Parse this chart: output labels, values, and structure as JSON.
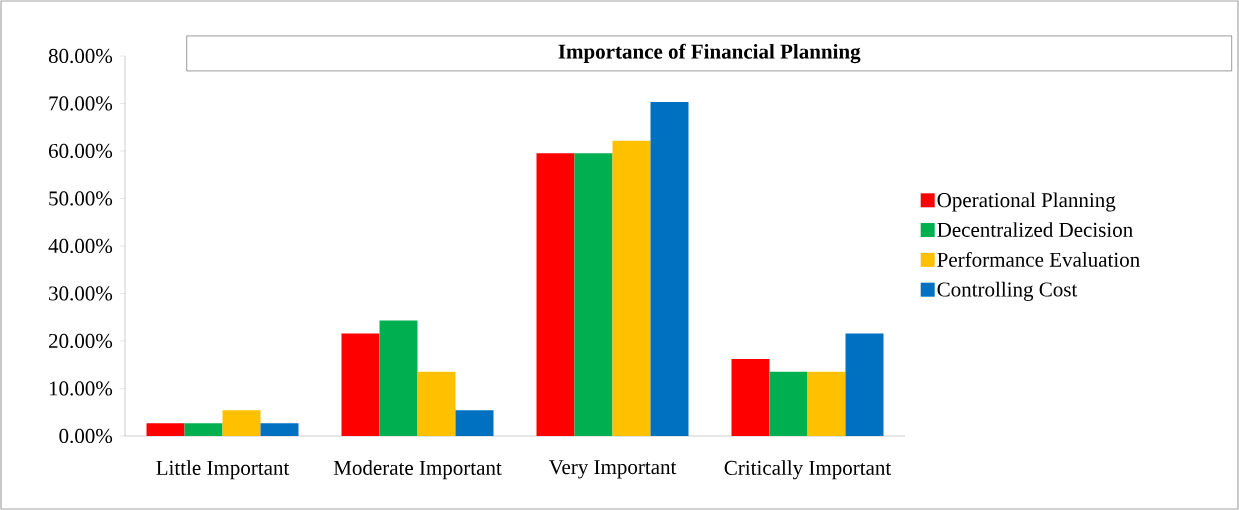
{
  "chart_data": {
    "type": "bar",
    "title": "Importance of Financial Planning",
    "categories": [
      "Little Important",
      "Moderate Important",
      "Very Important",
      "Critically Important"
    ],
    "series": [
      {
        "name": "Operational Planning",
        "color": "#ff0000",
        "values": [
          2.7,
          21.6,
          59.5,
          16.2
        ]
      },
      {
        "name": "Decentralized Decision",
        "color": "#00b050",
        "values": [
          2.7,
          24.3,
          59.5,
          13.5
        ]
      },
      {
        "name": "Performance Evaluation",
        "color": "#ffc000",
        "values": [
          5.4,
          13.5,
          62.2,
          13.5
        ]
      },
      {
        "name": "Controlling Cost",
        "color": "#0070c0",
        "values": [
          2.7,
          5.4,
          70.3,
          21.6
        ]
      }
    ],
    "ylim": [
      0,
      80
    ],
    "yticks": [
      {
        "value": 0,
        "label": "0.00%"
      },
      {
        "value": 10,
        "label": "10.00%"
      },
      {
        "value": 20,
        "label": "20.00%"
      },
      {
        "value": 30,
        "label": "30.00%"
      },
      {
        "value": 40,
        "label": "40.00%"
      },
      {
        "value": 50,
        "label": "50.00%"
      },
      {
        "value": 60,
        "label": "60.00%"
      },
      {
        "value": 70,
        "label": "70.00%"
      },
      {
        "value": 80,
        "label": "80.00%"
      }
    ],
    "grid": false,
    "legend": "right"
  }
}
